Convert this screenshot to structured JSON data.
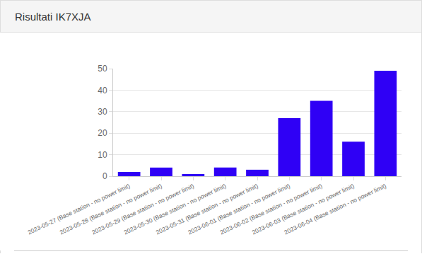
{
  "chart_data": {
    "type": "bar",
    "title": "Risultati IK7XJA",
    "categories": [
      "2023-05-27 (Base station - no power limit)",
      "2023-05-28 (Base station - no power limit)",
      "2023-05-29 (Base station - no power limit)",
      "2023-05-30 (Base station - no power limit)",
      "2023-05-31 (Base station - no power limit)",
      "2023-06-01 (Base station - no power limit)",
      "2023-06-02 (Base station - no power limit)",
      "2023-06-03 (Base station - no power limit)",
      "2023-06-04 (Base station - no power limit)"
    ],
    "values": [
      2,
      4,
      1,
      4,
      3,
      27,
      35,
      16,
      49
    ],
    "color": "#2f00f5",
    "ylim": [
      0,
      50
    ],
    "yticks": [
      0,
      10,
      20,
      30,
      40,
      50
    ],
    "grid": true
  }
}
